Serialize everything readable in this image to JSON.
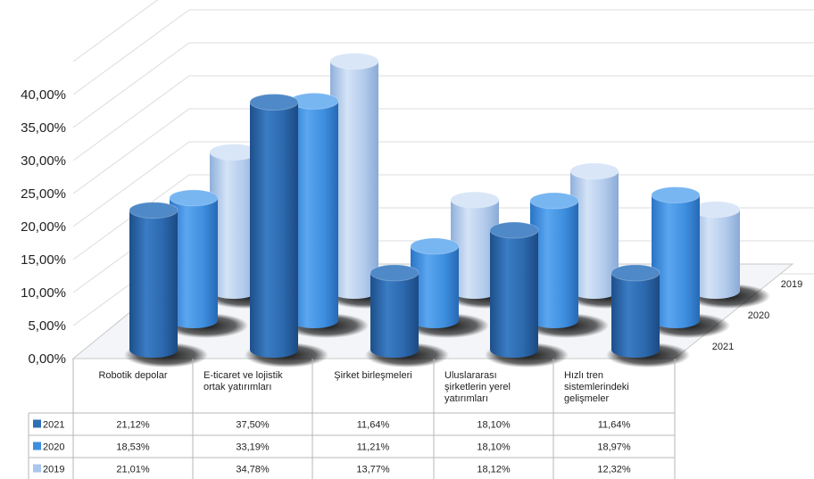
{
  "chart_data": {
    "type": "bar",
    "ylim": [
      0,
      40
    ],
    "yticks": [
      "0,00%",
      "5,00%",
      "10,00%",
      "15,00%",
      "20,00%",
      "25,00%",
      "30,00%",
      "35,00%",
      "40,00%"
    ],
    "categories": [
      "Robotik depolar",
      "E-ticaret ve lojistik ortak yatırımları",
      "Şirket birleşmeleri",
      "Uluslararası şirketlerin yerel yatırımları",
      "Hızlı tren sistemlerindeki gelişmeler"
    ],
    "category_lines": [
      [
        "Robotik depolar"
      ],
      [
        "E-ticaret ve lojistik",
        "ortak yatırımları"
      ],
      [
        "Şirket birleşmeleri"
      ],
      [
        "Uluslararası",
        "şirketlerin yerel",
        "yatırımları"
      ],
      [
        "Hızlı tren",
        "sistemlerindeki",
        "gelişmeler"
      ]
    ],
    "series": [
      {
        "name": "2021",
        "values": [
          21.12,
          37.5,
          11.64,
          18.1,
          11.64
        ],
        "labels": [
          "21,12%",
          "37,50%",
          "11,64%",
          "18,10%",
          "11,64%"
        ],
        "color": "#2e6fb5"
      },
      {
        "name": "2020",
        "values": [
          18.53,
          33.19,
          11.21,
          18.1,
          18.97
        ],
        "labels": [
          "18,53%",
          "33,19%",
          "11,21%",
          "18,10%",
          "18,97%"
        ],
        "color": "#3d8fe0"
      },
      {
        "name": "2019",
        "values": [
          21.01,
          34.78,
          13.77,
          18.12,
          12.32
        ],
        "labels": [
          "21,01%",
          "34,78%",
          "13,77%",
          "18,12%",
          "12,32%"
        ],
        "color": "#a9c6ec"
      }
    ],
    "depth_labels": [
      "2021",
      "2020",
      "2019"
    ],
    "grid": true,
    "legend": "table-left"
  }
}
